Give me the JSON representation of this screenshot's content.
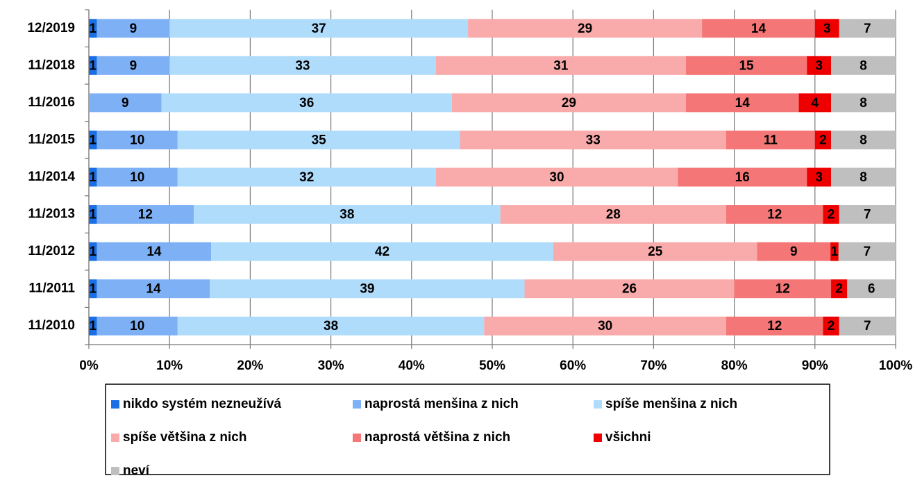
{
  "chart_data": {
    "type": "stacked_barh",
    "categories": [
      "12/2019",
      "11/2018",
      "11/2016",
      "11/2015",
      "11/2014",
      "11/2013",
      "11/2012",
      "11/2011",
      "11/2010"
    ],
    "series": [
      {
        "name": "nikdo systém nezneužívá",
        "color": "#1a6fe6",
        "values": [
          1,
          1,
          0,
          1,
          1,
          1,
          1,
          1,
          1
        ]
      },
      {
        "name": "naprostá menšina z nich",
        "color": "#7eb0f5",
        "values": [
          9,
          9,
          9,
          10,
          10,
          12,
          14,
          14,
          10
        ]
      },
      {
        "name": "spíše menšina z nich",
        "color": "#b0dcfc",
        "values": [
          37,
          33,
          36,
          35,
          32,
          38,
          42,
          39,
          38
        ]
      },
      {
        "name": "spíše většina z nich",
        "color": "#f9aaaa",
        "values": [
          29,
          31,
          29,
          33,
          30,
          28,
          25,
          26,
          30
        ]
      },
      {
        "name": "naprostá většina z nich",
        "color": "#f47676",
        "values": [
          14,
          15,
          14,
          11,
          16,
          12,
          9,
          12,
          12
        ]
      },
      {
        "name": "všichni",
        "color": "#ee0000",
        "values": [
          3,
          3,
          4,
          2,
          3,
          2,
          1,
          2,
          2
        ]
      },
      {
        "name": "neví",
        "color": "#bfbfbf",
        "values": [
          7,
          8,
          8,
          8,
          8,
          7,
          7,
          6,
          7
        ]
      }
    ],
    "xlim": [
      0,
      100
    ],
    "xticks": [
      {
        "value": 0,
        "label": "0%"
      },
      {
        "value": 10,
        "label": "10%"
      },
      {
        "value": 20,
        "label": "20%"
      },
      {
        "value": 30,
        "label": "30%"
      },
      {
        "value": 40,
        "label": "40%"
      },
      {
        "value": 50,
        "label": "50%"
      },
      {
        "value": 60,
        "label": "60%"
      },
      {
        "value": 70,
        "label": "70%"
      },
      {
        "value": 80,
        "label": "80%"
      },
      {
        "value": 90,
        "label": "90%"
      },
      {
        "value": 100,
        "label": "100%"
      }
    ],
    "grid": true
  }
}
